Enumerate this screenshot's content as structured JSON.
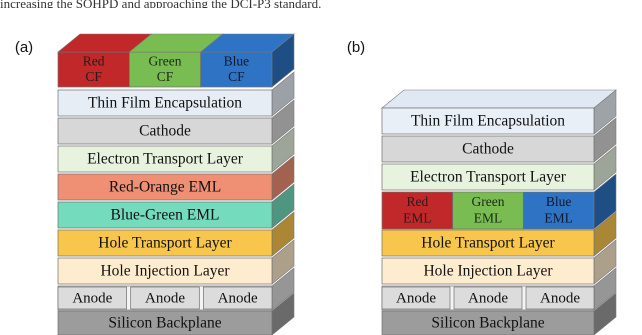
{
  "top_text": "increasing the SOHPD and approaching the DCI-P3 standard.",
  "panel_a": {
    "label": "(a)",
    "color_filters": [
      {
        "line1": "Red",
        "line2": "CF",
        "color": "#c0282a"
      },
      {
        "line1": "Green",
        "line2": "CF",
        "color": "#78bc52"
      },
      {
        "line1": "Blue",
        "line2": "CF",
        "color": "#2e73c4"
      }
    ],
    "layers": [
      {
        "label": "Thin Film Encapsulation",
        "color": "#e6edf5"
      },
      {
        "label": "Cathode",
        "color": "#d7d7d7"
      },
      {
        "label": "Electron Transport Layer",
        "color": "#e7f3df"
      },
      {
        "label": "Red-Orange EML",
        "color": "#ef8f74"
      },
      {
        "label": "Blue-Green EML",
        "color": "#74dcbd"
      },
      {
        "label": "Hole Transport Layer",
        "color": "#f8c64d"
      },
      {
        "label": "Hole Injection Layer",
        "color": "#fdeccd"
      }
    ],
    "anodes": [
      "Anode",
      "Anode",
      "Anode"
    ],
    "backplane": "Silicon Backplane"
  },
  "panel_b": {
    "label": "(b)",
    "layers_top": [
      {
        "label": "Thin Film Encapsulation",
        "color": "#e8eff7"
      },
      {
        "label": "Cathode",
        "color": "#d7d7d7"
      },
      {
        "label": "Electron Transport Layer",
        "color": "#e7f3df"
      }
    ],
    "emls": [
      {
        "line1": "Red",
        "line2": "EML",
        "color": "#c0282a"
      },
      {
        "line1": "Green",
        "line2": "EML",
        "color": "#78bc52"
      },
      {
        "line1": "Blue",
        "line2": "EML",
        "color": "#2e73c4"
      }
    ],
    "layers_bottom": [
      {
        "label": "Hole Transport Layer",
        "color": "#f8c64d"
      },
      {
        "label": "Hole Injection Layer",
        "color": "#fdeccd"
      }
    ],
    "anodes": [
      "Anode",
      "Anode",
      "Anode"
    ],
    "backplane": "Silicon Backplane"
  }
}
